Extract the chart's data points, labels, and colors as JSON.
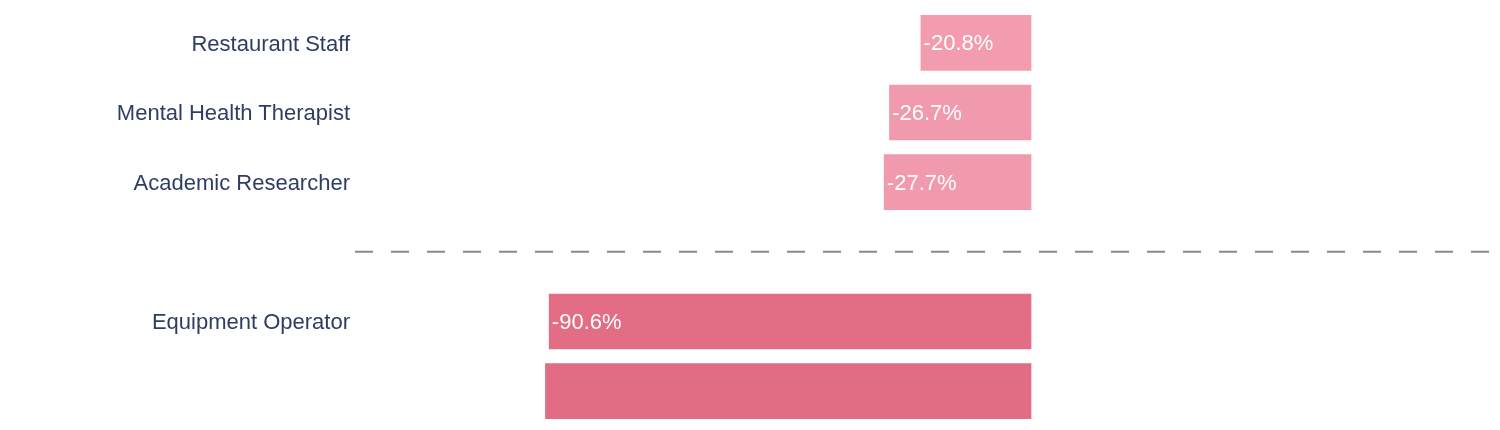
{
  "chart_data": {
    "type": "bar",
    "orientation": "horizontal",
    "categories": [
      "Restaurant Staff",
      "Mental Health Therapist",
      "Academic Researcher",
      null,
      "Equipment Operator",
      null
    ],
    "values": [
      -20.8,
      -26.7,
      -27.7,
      null,
      -90.6,
      -91.3
    ],
    "colors": [
      "#f39cae",
      "#f29aad",
      "#f29aad",
      null,
      "#e26d84",
      "#e26c83"
    ],
    "value_labels": [
      "-20.8%",
      "-26.7%",
      "-27.7%",
      null,
      "-90.6%",
      null
    ],
    "xlim": [
      -127,
      88
    ],
    "tick_labels": "y"
  }
}
